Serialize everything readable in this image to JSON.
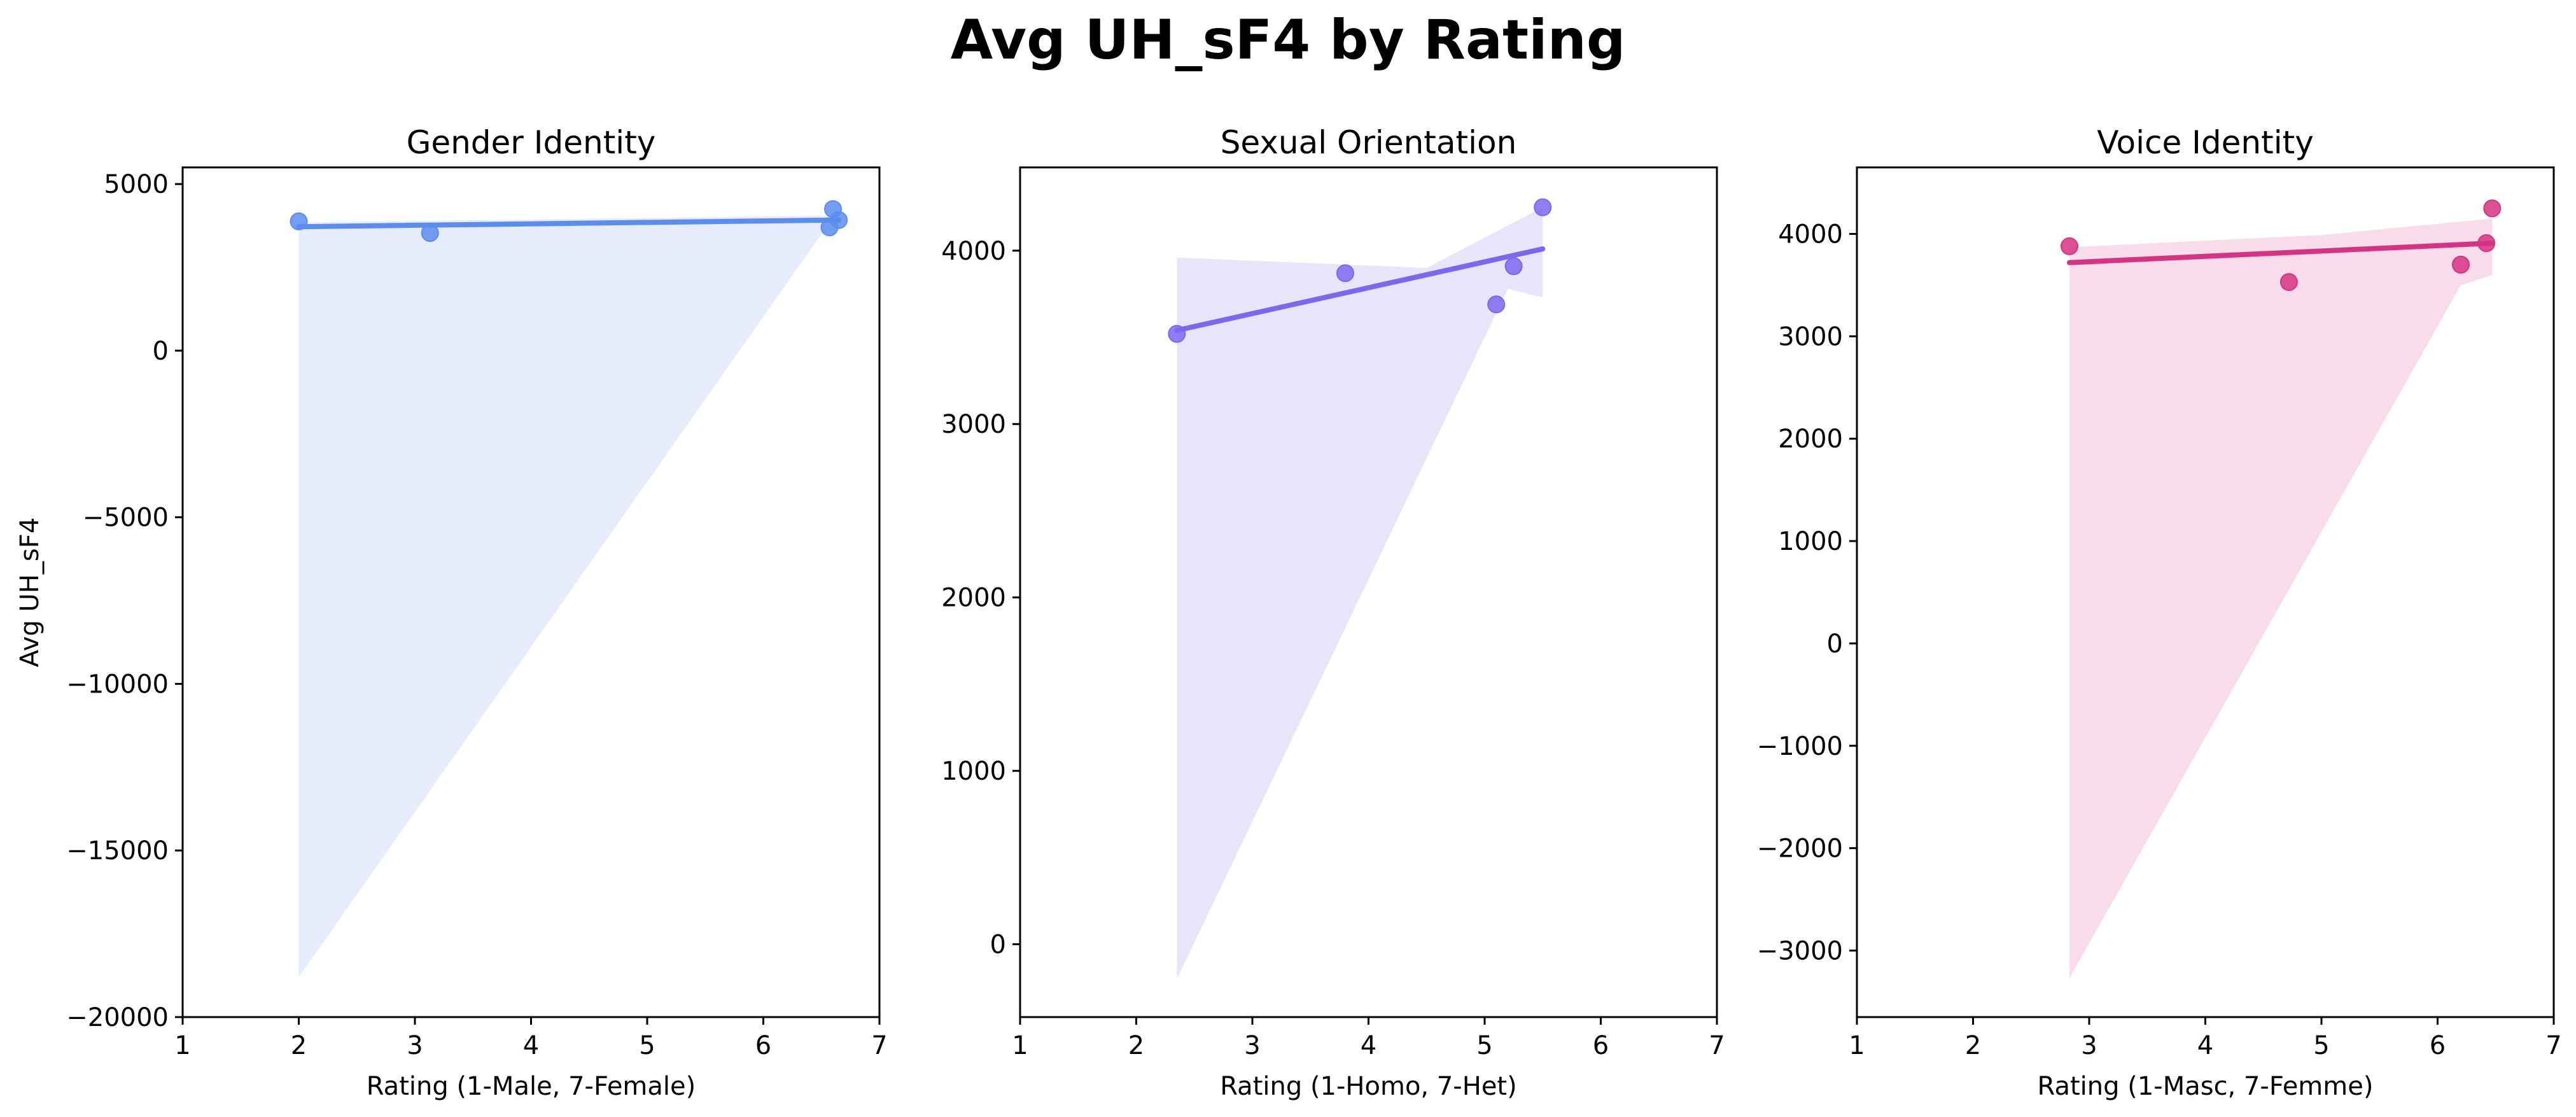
{
  "figure": {
    "title": "Avg UH_sF4 by Rating"
  },
  "chart_data": [
    {
      "type": "scatter",
      "title": "Gender Identity",
      "xlabel": "Rating (1-Male, 7-Female)",
      "ylabel": "Avg UH_sF4",
      "xlim": [
        1,
        7
      ],
      "ylim": [
        -20000,
        5500
      ],
      "xticks": [
        1,
        2,
        3,
        4,
        5,
        6,
        7
      ],
      "yticks": [
        -20000,
        -15000,
        -10000,
        -5000,
        0,
        5000
      ],
      "ytick_labels": [
        "−20000",
        "−15000",
        "−10000",
        "−5000",
        "0",
        "5000"
      ],
      "color": "#5b8def",
      "band_color": "#e6ecfc",
      "points": [
        {
          "x": 2.0,
          "y": 3880
        },
        {
          "x": 3.13,
          "y": 3530
        },
        {
          "x": 6.57,
          "y": 3700
        },
        {
          "x": 6.6,
          "y": 4250
        },
        {
          "x": 6.65,
          "y": 3920
        }
      ],
      "regression": {
        "x": [
          2.0,
          6.65
        ],
        "y": [
          3720,
          3920
        ]
      },
      "ci_band": {
        "x": [
          2.0,
          6.5,
          6.65,
          6.65,
          6.5,
          2.0
        ],
        "y": [
          3850,
          4050,
          4100,
          3700,
          3500,
          -18800
        ]
      }
    },
    {
      "type": "scatter",
      "title": "Sexual Orientation",
      "xlabel": "Rating (1-Homo, 7-Het)",
      "ylabel": "",
      "xlim": [
        1,
        7
      ],
      "ylim": [
        -420,
        4480
      ],
      "xticks": [
        1,
        2,
        3,
        4,
        5,
        6,
        7
      ],
      "yticks": [
        0,
        1000,
        2000,
        3000,
        4000
      ],
      "ytick_labels": [
        "0",
        "1000",
        "2000",
        "3000",
        "4000"
      ],
      "color": "#7b68ee",
      "band_color": "#e8e4fa",
      "points": [
        {
          "x": 2.35,
          "y": 3520
        },
        {
          "x": 3.8,
          "y": 3870
        },
        {
          "x": 5.1,
          "y": 3690
        },
        {
          "x": 5.25,
          "y": 3910
        },
        {
          "x": 5.5,
          "y": 4250
        }
      ],
      "regression": {
        "x": [
          2.35,
          5.5
        ],
        "y": [
          3540,
          4010
        ]
      },
      "ci_band": {
        "x": [
          2.35,
          4.5,
          5.5,
          5.5,
          5.2,
          2.35
        ],
        "y": [
          3960,
          3900,
          4250,
          3730,
          3780,
          -200
        ]
      }
    },
    {
      "type": "scatter",
      "title": "Voice Identity",
      "xlabel": "Rating (1-Masc, 7-Femme)",
      "ylabel": "",
      "xlim": [
        1,
        7
      ],
      "ylim": [
        -3650,
        4650
      ],
      "xticks": [
        1,
        2,
        3,
        4,
        5,
        6,
        7
      ],
      "yticks": [
        -3000,
        -2000,
        -1000,
        0,
        1000,
        2000,
        3000,
        4000
      ],
      "ytick_labels": [
        "−3000",
        "−2000",
        "−1000",
        "0",
        "1000",
        "2000",
        "3000",
        "4000"
      ],
      "color": "#d63384",
      "band_color": "#f8dce9",
      "points": [
        {
          "x": 2.83,
          "y": 3880
        },
        {
          "x": 4.72,
          "y": 3530
        },
        {
          "x": 6.2,
          "y": 3700
        },
        {
          "x": 6.42,
          "y": 3910
        },
        {
          "x": 6.47,
          "y": 4250
        }
      ],
      "regression": {
        "x": [
          2.83,
          6.47
        ],
        "y": [
          3720,
          3910
        ]
      },
      "ci_band": {
        "x": [
          2.83,
          5.0,
          6.47,
          6.47,
          6.2,
          2.83
        ],
        "y": [
          3870,
          3990,
          4150,
          3600,
          3500,
          -3270
        ]
      }
    }
  ]
}
